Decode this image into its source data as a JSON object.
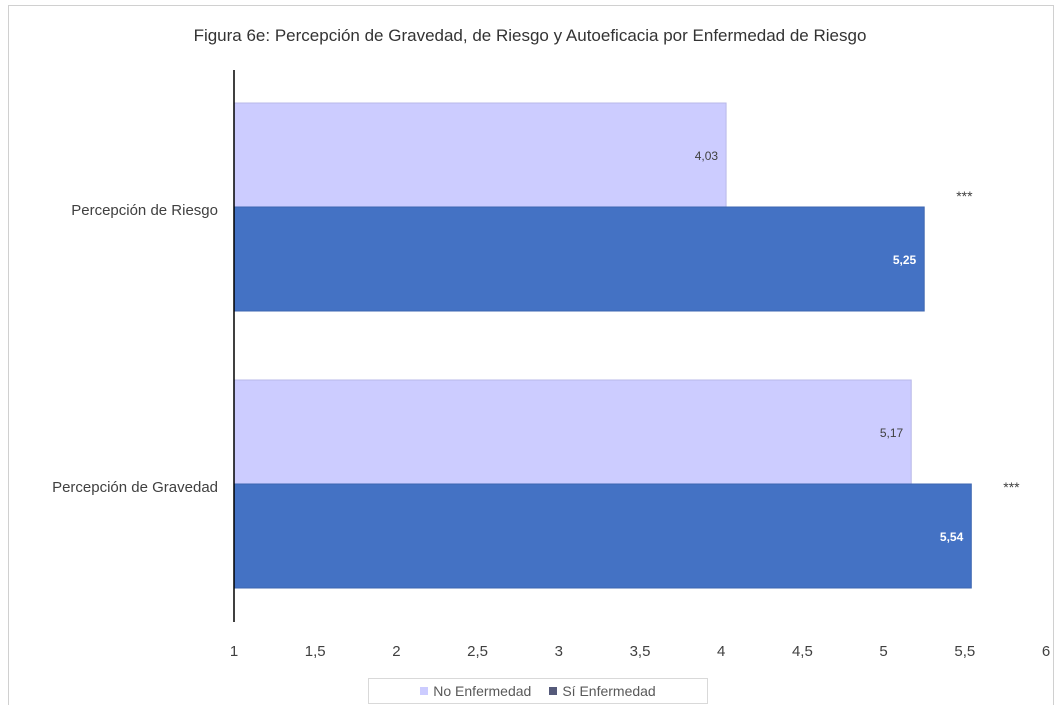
{
  "chart_data": {
    "type": "bar",
    "orientation": "horizontal",
    "title": "Figura 6e: Percepción de Gravedad, de Riesgo y Autoeficacia por Enfermedad de Riesgo",
    "categories": [
      "Percepción de Riesgo",
      "Percepción de Gravedad"
    ],
    "series": [
      {
        "name": "No Enfermedad",
        "color": "#ccccff",
        "values": [
          4.03,
          5.17
        ],
        "labels": [
          "4,03",
          "5,17"
        ]
      },
      {
        "name": "Sí Enfermedad",
        "color": "#4472c4",
        "values": [
          5.25,
          5.54
        ],
        "labels": [
          "5,25",
          "5,54"
        ]
      }
    ],
    "significance": [
      "***",
      "***"
    ],
    "xlim": [
      1,
      6
    ],
    "xticks": [
      1,
      1.5,
      2,
      2.5,
      3,
      3.5,
      4,
      4.5,
      5,
      5.5,
      6
    ],
    "xtick_labels": [
      "1",
      "1,5",
      "2",
      "2,5",
      "3",
      "3,5",
      "4",
      "4,5",
      "5",
      "5,5",
      "6"
    ],
    "grid": false,
    "legend_position": "bottom"
  }
}
